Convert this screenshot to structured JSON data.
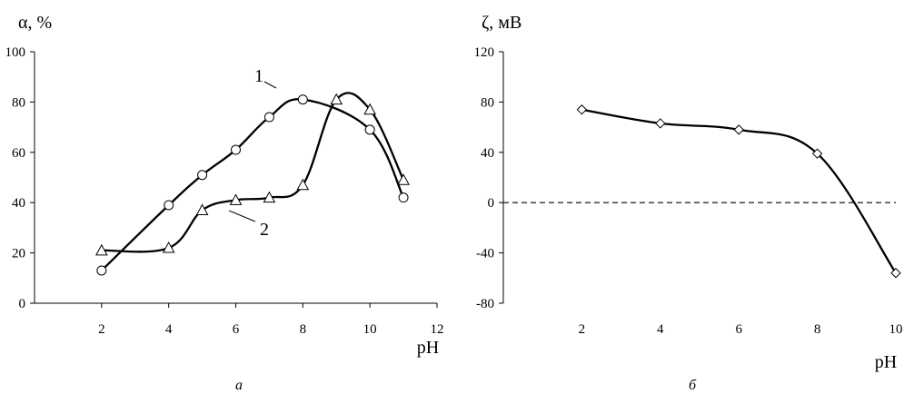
{
  "chart_data": [
    {
      "type": "line",
      "panel_label": "а",
      "ylabel": "α, %",
      "xlabel": "pH",
      "xlim": [
        0,
        12
      ],
      "ylim": [
        0,
        100
      ],
      "x_ticks": [
        "2",
        "4",
        "6",
        "8",
        "10",
        "12"
      ],
      "y_ticks": [
        "0",
        "20",
        "40",
        "60",
        "80",
        "100"
      ],
      "y_tick_values": [
        0,
        20,
        40,
        60,
        80,
        100
      ],
      "grid": false,
      "series": [
        {
          "name": "1",
          "marker": "circle",
          "x": [
            2,
            4,
            5,
            6,
            7,
            8,
            10,
            11
          ],
          "y": [
            13,
            39,
            51,
            61,
            74,
            81,
            69,
            42
          ]
        },
        {
          "name": "2",
          "marker": "triangle",
          "x": [
            2,
            4,
            5,
            6,
            7,
            8,
            9,
            10,
            11
          ],
          "y": [
            21,
            22,
            37,
            41,
            42,
            47,
            81,
            77,
            49
          ]
        }
      ]
    },
    {
      "type": "line",
      "panel_label": "б",
      "ylabel": "ζ, мВ",
      "xlabel": "pH",
      "xlim": [
        0,
        10
      ],
      "ylim": [
        -80,
        120
      ],
      "x_ticks": [
        "2",
        "4",
        "6",
        "8",
        "10"
      ],
      "y_ticks": [
        "-80",
        "-40",
        "0",
        "40",
        "80",
        "120"
      ],
      "y_tick_values": [
        -80,
        -40,
        0,
        40,
        80,
        120
      ],
      "grid": false,
      "reference_line": {
        "y": 0,
        "style": "dashed"
      },
      "series": [
        {
          "marker": "diamond",
          "x": [
            2,
            4,
            6,
            8,
            10
          ],
          "y": [
            74,
            63,
            58,
            39,
            -56
          ]
        }
      ]
    }
  ]
}
